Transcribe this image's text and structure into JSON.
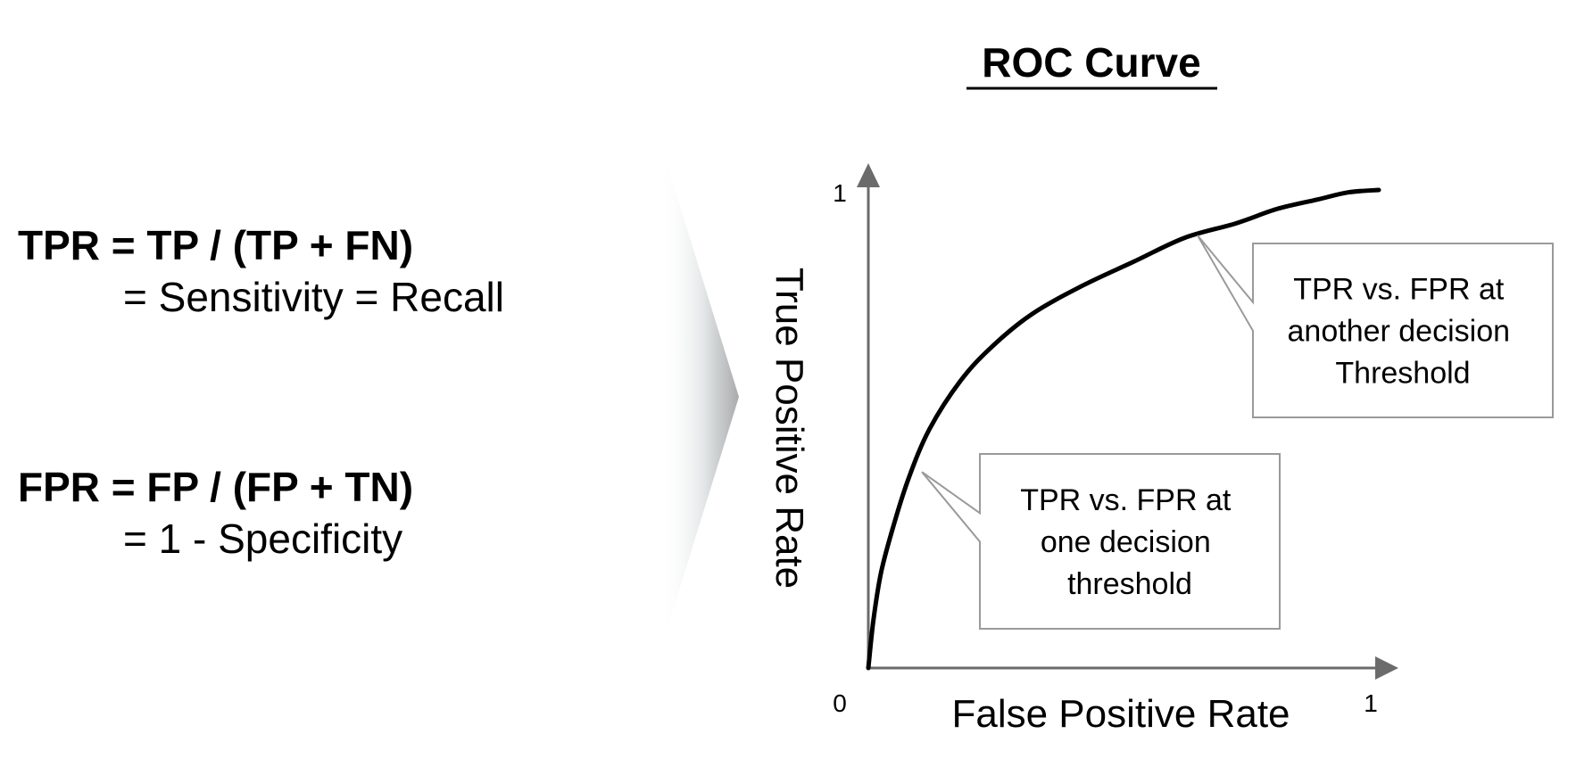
{
  "formulas": {
    "tpr": {
      "head": "TPR = TP / (TP + FN)",
      "sub": "= Sensitivity = Recall"
    },
    "fpr": {
      "head": "FPR = FP / (FP + TN)",
      "sub": "= 1 - Specificity"
    }
  },
  "chart_data": {
    "type": "line",
    "title": "ROC Curve",
    "xlabel": "False Positive Rate",
    "ylabel": "True Positive Rate",
    "xlim": [
      0,
      1
    ],
    "ylim": [
      0,
      1
    ],
    "x_ticks": [
      "0",
      "1"
    ],
    "y_ticks": [
      "1"
    ],
    "grid": false,
    "series": [
      {
        "color": "#000000",
        "x": [
          0,
          0.01,
          0.025,
          0.05,
          0.08,
          0.12,
          0.18,
          0.24,
          0.32,
          0.42,
          0.52,
          0.62,
          0.72,
          0.8,
          0.88,
          0.94,
          1.0
        ],
        "y": [
          0,
          0.1,
          0.2,
          0.3,
          0.4,
          0.5,
          0.6,
          0.67,
          0.74,
          0.8,
          0.85,
          0.9,
          0.93,
          0.96,
          0.98,
          0.995,
          1.0
        ]
      }
    ],
    "annotations": [
      {
        "lines": [
          "TPR vs. FPR at",
          "one decision",
          "threshold"
        ],
        "point": [
          0.105,
          0.41
        ]
      },
      {
        "lines": [
          "TPR vs. FPR at",
          "another decision",
          "Threshold"
        ],
        "point": [
          0.645,
          0.905
        ]
      }
    ]
  }
}
